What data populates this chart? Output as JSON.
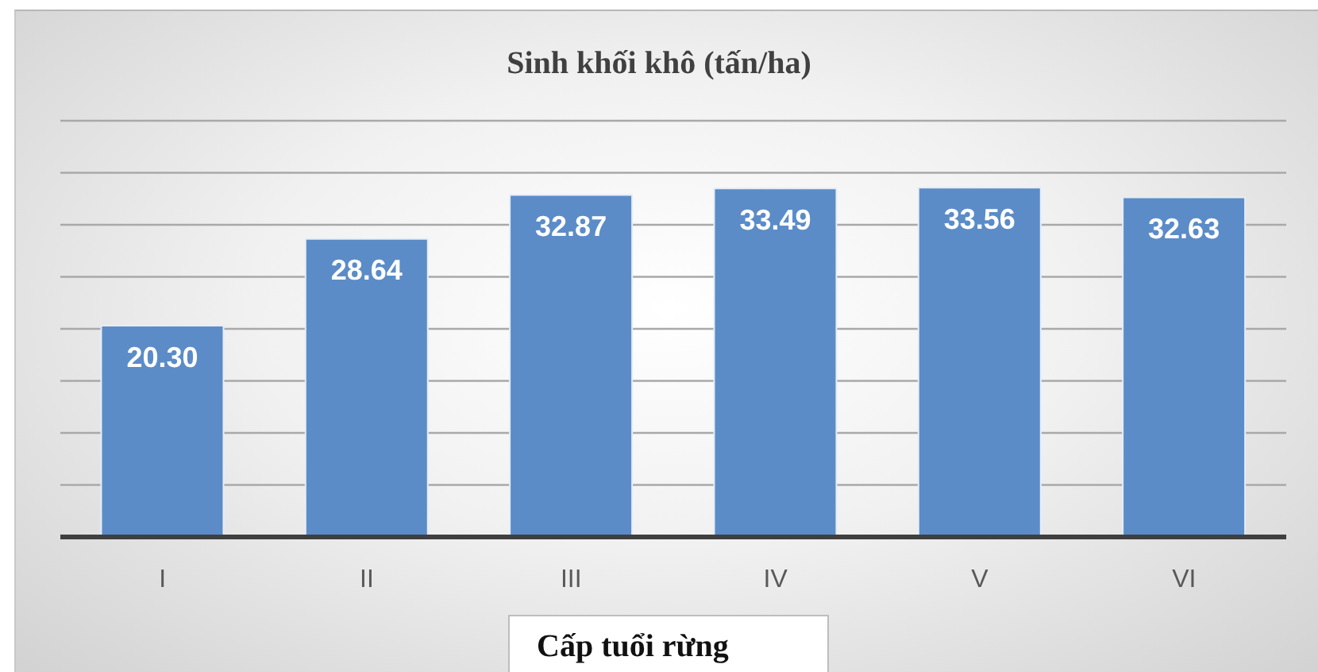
{
  "chart_data": {
    "type": "bar",
    "title": "Sinh khối khô (tấn/ha)",
    "xlabel": "Cấp tuổi rừng",
    "categories": [
      "I",
      "II",
      "III",
      "IV",
      "V",
      "VI"
    ],
    "values": [
      20.3,
      28.64,
      32.87,
      33.49,
      33.56,
      32.63
    ],
    "value_labels": [
      "20.30",
      "28.64",
      "32.87",
      "33.49",
      "33.56",
      "32.63"
    ],
    "color": "#5b8cc8",
    "ylim": [
      0,
      40
    ],
    "yticks": [
      {
        "value": 0,
        "label": null
      },
      {
        "value": 5,
        "label": null
      },
      {
        "value": 10,
        "label": null
      },
      {
        "value": 15,
        "label": null
      },
      {
        "value": 20,
        "label": null
      },
      {
        "value": 25,
        "label": null
      },
      {
        "value": 30,
        "label": null
      },
      {
        "value": 35,
        "label": null
      },
      {
        "value": 40,
        "label": null
      }
    ],
    "grid": "y",
    "tick_labels": "x"
  }
}
